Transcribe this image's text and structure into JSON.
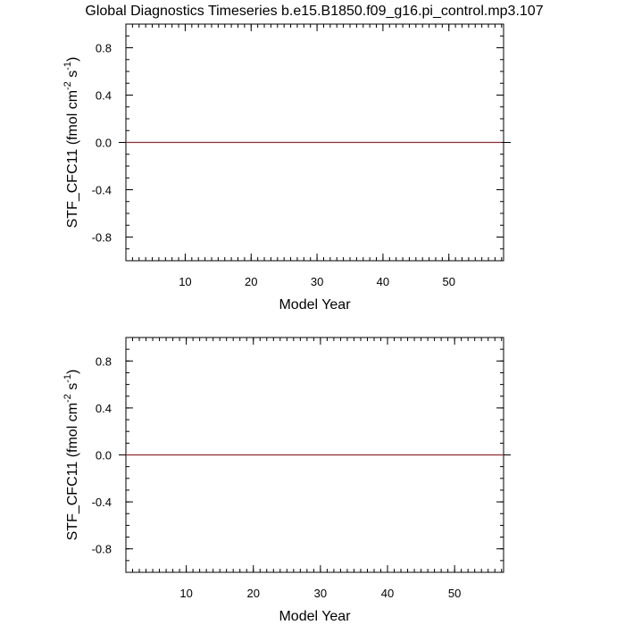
{
  "title": "Global Diagnostics Timeseries b.e15.B1850.f09_g16.pi_control.mp3.107",
  "chart_data": [
    {
      "type": "line",
      "xlabel": "Model Year",
      "ylabel": {
        "main": "STF_CFC11 (fmol cm",
        "exp1": "-2",
        "mid": " s",
        "exp2": "-1",
        "end": ")"
      },
      "xlim": [
        1,
        58.3
      ],
      "ylim": [
        -1.0,
        1.0
      ],
      "x_ticks": [
        10,
        20,
        30,
        40,
        50
      ],
      "y_ticks": [
        0.8,
        0.4,
        0.0,
        -0.4,
        -0.8
      ],
      "y_tick_labels": [
        "0.8",
        "0.4",
        "0.0",
        "-0.4",
        "-0.8"
      ],
      "zero_line": true,
      "series": [
        {
          "color": "#8b2e2e",
          "x": [
            1,
            58
          ],
          "y": [
            0.0,
            0.0
          ]
        }
      ]
    },
    {
      "type": "line",
      "xlabel": "Model Year",
      "ylabel": {
        "main": "STF_CFC11 (fmol cm",
        "exp1": "-2",
        "mid": " s",
        "exp2": "-1",
        "end": ")"
      },
      "xlim": [
        1,
        57.3
      ],
      "ylim": [
        -1.0,
        1.0
      ],
      "x_ticks": [
        10,
        20,
        30,
        40,
        50
      ],
      "y_ticks": [
        0.8,
        0.4,
        0.0,
        -0.4,
        -0.8
      ],
      "y_tick_labels": [
        "0.8",
        "0.4",
        "0.0",
        "-0.4",
        "-0.8"
      ],
      "zero_line": true,
      "series": [
        {
          "color": "#8b2e2e",
          "x": [
            1,
            57.3
          ],
          "y": [
            0.0,
            0.0
          ]
        }
      ]
    }
  ]
}
